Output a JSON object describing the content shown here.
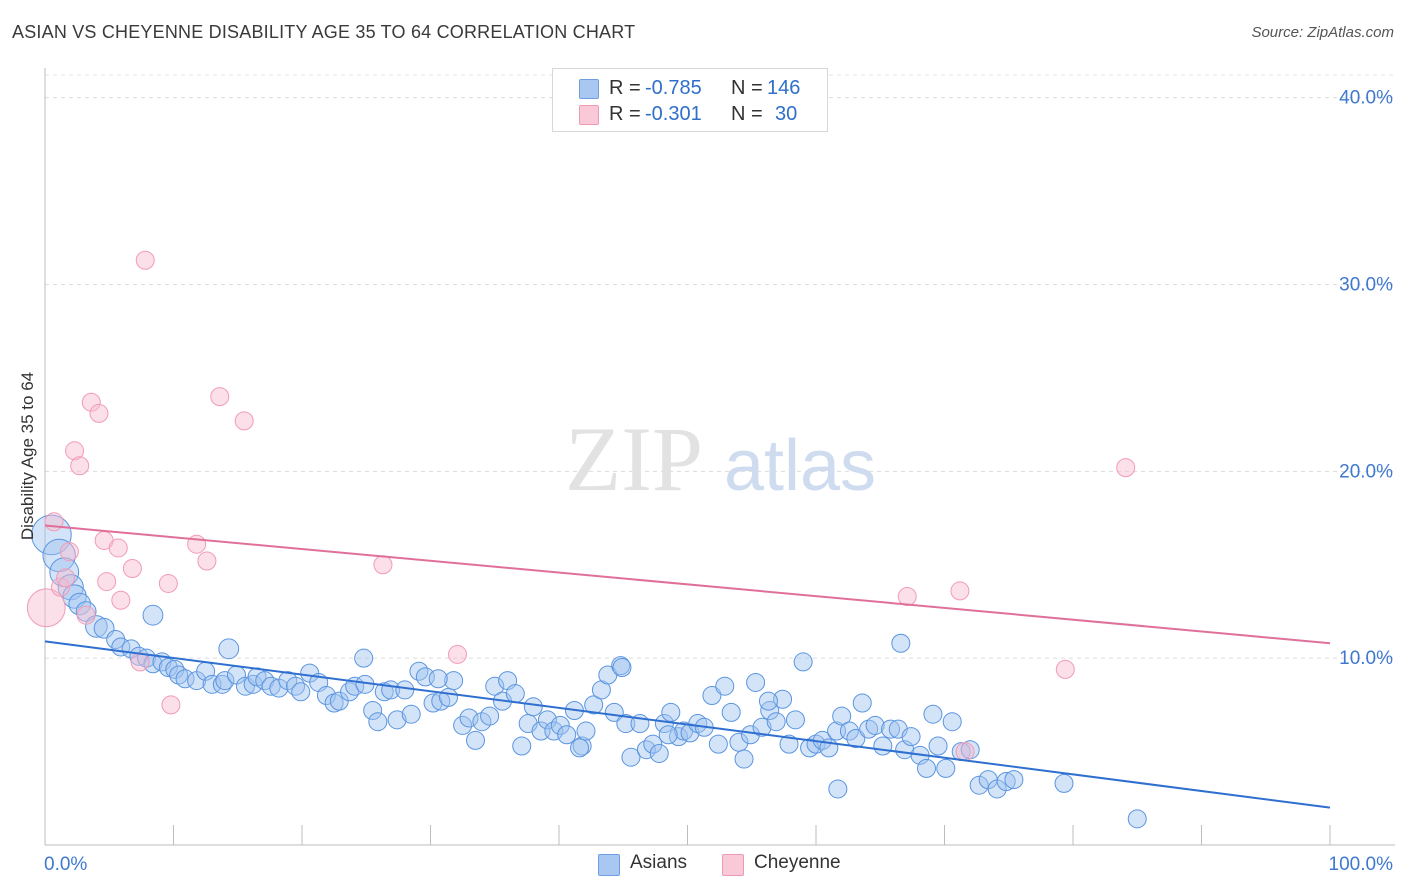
{
  "title": "ASIAN VS CHEYENNE DISABILITY AGE 35 TO 64 CORRELATION CHART",
  "source": "Source: ZipAtlas.com",
  "watermark": {
    "zip": "ZIP",
    "atlas": "atlas"
  },
  "legend_top": [
    {
      "r_label": "R =",
      "r_value": "-0.785",
      "n_label": "N =",
      "n_value": "146",
      "color": "#a9c8f1"
    },
    {
      "r_label": "R =",
      "r_value": "-0.301",
      "n_label": "N =",
      "n_value": "30",
      "color": "#f5b8cc"
    }
  ],
  "legend_bottom": [
    {
      "label": "Asians",
      "color": "#a9c8f1"
    },
    {
      "label": "Cheyenne",
      "color": "#f5b8cc"
    }
  ],
  "chart_data": {
    "type": "scatter",
    "title": "ASIAN VS CHEYENNE DISABILITY AGE 35 TO 64 CORRELATION CHART",
    "xlabel": "",
    "ylabel": "Disability Age 35 to 64",
    "xlim": [
      0,
      100
    ],
    "ylim": [
      0,
      41
    ],
    "x_tick_labels": [
      "0.0%",
      "100.0%"
    ],
    "y_ticks": [
      10,
      20,
      30,
      40
    ],
    "y_tick_labels": [
      "10.0%",
      "20.0%",
      "30.0%",
      "40.0%"
    ],
    "grid": true,
    "legend_position": "top-center",
    "series": [
      {
        "name": "Asians",
        "color": "#5b95e0",
        "trend": {
          "x": [
            0,
            100
          ],
          "y": [
            10.9,
            2.0
          ],
          "color": "#2f6fd0"
        },
        "points": [
          [
            0.5,
            16.6,
            2.2
          ],
          [
            1.1,
            15.5,
            1.8
          ],
          [
            1.5,
            14.6,
            1.6
          ],
          [
            2.0,
            13.8,
            1.4
          ],
          [
            2.3,
            13.3,
            1.3
          ],
          [
            2.7,
            12.9,
            1.2
          ],
          [
            3.2,
            12.5,
            1.1
          ],
          [
            4.0,
            11.7,
            1.2
          ],
          [
            4.6,
            11.6,
            1.1
          ],
          [
            5.5,
            11.0,
            1.0
          ],
          [
            5.9,
            10.6,
            1.0
          ],
          [
            6.7,
            10.5,
            1.0
          ],
          [
            7.3,
            10.1,
            1.0
          ],
          [
            7.9,
            10.0,
            1.0
          ],
          [
            8.4,
            9.7,
            1.0
          ],
          [
            9.1,
            9.8,
            1.0
          ],
          [
            9.6,
            9.5,
            1.0
          ],
          [
            10.1,
            9.4,
            1.0
          ],
          [
            10.4,
            9.1,
            1.0
          ],
          [
            10.9,
            8.9,
            1.0
          ],
          [
            11.8,
            8.8,
            1.0
          ],
          [
            12.5,
            9.3,
            1.0
          ],
          [
            13.0,
            8.6,
            1.0
          ],
          [
            13.8,
            8.6,
            1.0
          ],
          [
            14.0,
            8.8,
            1.0
          ],
          [
            14.9,
            9.1,
            1.0
          ],
          [
            15.6,
            8.5,
            1.0
          ],
          [
            16.2,
            8.6,
            1.0
          ],
          [
            16.5,
            9.0,
            1.0
          ],
          [
            17.1,
            8.8,
            1.0
          ],
          [
            17.6,
            8.5,
            1.0
          ],
          [
            18.2,
            8.4,
            1.0
          ],
          [
            18.9,
            8.8,
            1.0
          ],
          [
            19.5,
            8.5,
            1.0
          ],
          [
            19.9,
            8.2,
            1.0
          ],
          [
            20.6,
            9.2,
            1.0
          ],
          [
            21.3,
            8.7,
            1.0
          ],
          [
            21.9,
            8.0,
            1.0
          ],
          [
            22.5,
            7.6,
            1.0
          ],
          [
            22.9,
            7.7,
            1.0
          ],
          [
            23.7,
            8.2,
            1.0
          ],
          [
            24.1,
            8.5,
            1.0
          ],
          [
            24.9,
            8.6,
            1.0
          ],
          [
            25.5,
            7.2,
            1.0
          ],
          [
            25.9,
            6.6,
            1.0
          ],
          [
            26.4,
            8.2,
            1.0
          ],
          [
            26.9,
            8.3,
            1.0
          ],
          [
            27.4,
            6.7,
            1.0
          ],
          [
            28.0,
            8.3,
            1.0
          ],
          [
            28.5,
            7.0,
            1.0
          ],
          [
            29.1,
            9.3,
            1.0
          ],
          [
            29.6,
            9.0,
            1.0
          ],
          [
            30.2,
            7.6,
            1.0
          ],
          [
            30.8,
            7.7,
            1.0
          ],
          [
            31.4,
            7.9,
            1.0
          ],
          [
            31.8,
            8.8,
            1.0
          ],
          [
            32.5,
            6.4,
            1.0
          ],
          [
            33.0,
            6.8,
            1.0
          ],
          [
            33.5,
            5.6,
            1.0
          ],
          [
            34.0,
            6.6,
            1.0
          ],
          [
            34.6,
            6.9,
            1.0
          ],
          [
            35.0,
            8.5,
            1.0
          ],
          [
            35.6,
            7.7,
            1.0
          ],
          [
            36.0,
            8.8,
            1.0
          ],
          [
            36.6,
            8.1,
            1.0
          ],
          [
            37.1,
            5.3,
            1.0
          ],
          [
            37.6,
            6.5,
            1.0
          ],
          [
            38.0,
            7.4,
            1.0
          ],
          [
            38.6,
            6.1,
            1.0
          ],
          [
            39.1,
            6.7,
            1.0
          ],
          [
            39.6,
            6.1,
            1.0
          ],
          [
            40.1,
            6.4,
            1.0
          ],
          [
            40.6,
            5.9,
            1.0
          ],
          [
            41.2,
            7.2,
            1.0
          ],
          [
            41.8,
            5.3,
            1.0
          ],
          [
            42.1,
            6.1,
            1.0
          ],
          [
            42.7,
            7.5,
            1.0
          ],
          [
            43.3,
            8.3,
            1.0
          ],
          [
            43.8,
            9.1,
            1.0
          ],
          [
            44.3,
            7.1,
            1.0
          ],
          [
            44.8,
            9.6,
            1.0
          ],
          [
            45.2,
            6.5,
            1.0
          ],
          [
            45.6,
            4.7,
            1.0
          ],
          [
            46.3,
            6.5,
            1.0
          ],
          [
            46.8,
            5.1,
            1.0
          ],
          [
            47.3,
            5.4,
            1.0
          ],
          [
            47.8,
            4.9,
            1.0
          ],
          [
            48.2,
            6.5,
            1.0
          ],
          [
            48.7,
            7.1,
            1.0
          ],
          [
            49.3,
            5.8,
            1.0
          ],
          [
            49.7,
            6.1,
            1.0
          ],
          [
            50.2,
            6.0,
            1.0
          ],
          [
            50.8,
            6.5,
            1.0
          ],
          [
            51.3,
            6.3,
            1.0
          ],
          [
            51.9,
            8.0,
            1.0
          ],
          [
            52.4,
            5.4,
            1.0
          ],
          [
            52.9,
            8.5,
            1.0
          ],
          [
            53.4,
            7.1,
            1.0
          ],
          [
            54.0,
            5.5,
            1.0
          ],
          [
            54.4,
            4.6,
            1.0
          ],
          [
            54.9,
            5.9,
            1.0
          ],
          [
            55.3,
            8.7,
            1.0
          ],
          [
            55.8,
            6.3,
            1.0
          ],
          [
            56.4,
            7.2,
            1.0
          ],
          [
            56.9,
            6.6,
            1.0
          ],
          [
            57.4,
            7.8,
            1.0
          ],
          [
            57.9,
            5.4,
            1.0
          ],
          [
            58.4,
            6.7,
            1.0
          ],
          [
            59.0,
            9.8,
            1.0
          ],
          [
            59.5,
            5.2,
            1.0
          ],
          [
            60.0,
            5.4,
            1.0
          ],
          [
            60.5,
            5.6,
            1.0
          ],
          [
            61.0,
            5.2,
            1.0
          ],
          [
            61.6,
            6.1,
            1.0
          ],
          [
            62.0,
            6.9,
            1.0
          ],
          [
            62.6,
            6.1,
            1.0
          ],
          [
            63.1,
            5.7,
            1.0
          ],
          [
            63.6,
            7.6,
            1.0
          ],
          [
            64.1,
            6.2,
            1.0
          ],
          [
            64.6,
            6.4,
            1.0
          ],
          [
            65.2,
            5.3,
            1.0
          ],
          [
            65.8,
            6.2,
            1.0
          ],
          [
            66.4,
            6.2,
            1.0
          ],
          [
            66.9,
            5.1,
            1.0
          ],
          [
            67.4,
            5.8,
            1.0
          ],
          [
            68.1,
            4.8,
            1.0
          ],
          [
            68.6,
            4.1,
            1.0
          ],
          [
            69.1,
            7.0,
            1.0
          ],
          [
            69.5,
            5.3,
            1.0
          ],
          [
            70.1,
            4.1,
            1.0
          ],
          [
            70.6,
            6.6,
            1.0
          ],
          [
            71.3,
            5.0,
            1.0
          ],
          [
            72.0,
            5.1,
            1.0
          ],
          [
            72.7,
            3.2,
            1.0
          ],
          [
            73.4,
            3.5,
            1.0
          ],
          [
            74.1,
            3.0,
            1.0
          ],
          [
            74.8,
            3.4,
            1.0
          ],
          [
            75.4,
            3.5,
            1.0
          ],
          [
            66.6,
            10.8,
            1.0
          ],
          [
            61.7,
            3.0,
            1.0
          ],
          [
            85.0,
            1.4,
            1.0
          ],
          [
            24.8,
            10.0,
            1.0
          ],
          [
            8.4,
            12.3,
            1.1
          ],
          [
            14.3,
            10.5,
            1.1
          ],
          [
            30.6,
            8.9,
            1.0
          ],
          [
            44.9,
            9.5,
            1.0
          ],
          [
            48.5,
            5.9,
            1.0
          ],
          [
            41.6,
            5.2,
            1.0
          ],
          [
            56.3,
            7.7,
            1.0
          ],
          [
            79.3,
            3.3,
            1.0
          ]
        ]
      },
      {
        "name": "Cheyenne",
        "color": "#f29bb6",
        "trend": {
          "x": [
            0,
            100
          ],
          "y": [
            17.1,
            10.8
          ],
          "color": "#e0709a"
        },
        "points": [
          [
            0.1,
            12.7,
            2.1
          ],
          [
            0.7,
            17.3,
            1.0
          ],
          [
            1.2,
            13.8,
            1.0
          ],
          [
            1.6,
            14.3,
            1.0
          ],
          [
            1.9,
            15.7,
            1.0
          ],
          [
            2.3,
            21.1,
            1.0
          ],
          [
            2.7,
            20.3,
            1.0
          ],
          [
            3.2,
            12.3,
            1.0
          ],
          [
            3.6,
            23.7,
            1.0
          ],
          [
            4.2,
            23.1,
            1.0
          ],
          [
            4.6,
            16.3,
            1.0
          ],
          [
            4.8,
            14.1,
            1.0
          ],
          [
            5.7,
            15.9,
            1.0
          ],
          [
            5.9,
            13.1,
            1.0
          ],
          [
            6.8,
            14.8,
            1.0
          ],
          [
            7.4,
            9.8,
            1.0
          ],
          [
            7.8,
            31.3,
            1.0
          ],
          [
            9.6,
            14.0,
            1.0
          ],
          [
            9.8,
            7.5,
            1.0
          ],
          [
            11.8,
            16.1,
            1.0
          ],
          [
            12.6,
            15.2,
            1.0
          ],
          [
            13.6,
            24.0,
            1.0
          ],
          [
            15.5,
            22.7,
            1.0
          ],
          [
            26.3,
            15.0,
            1.0
          ],
          [
            32.1,
            10.2,
            1.0
          ],
          [
            67.1,
            13.3,
            1.0
          ],
          [
            71.2,
            13.6,
            1.0
          ],
          [
            71.6,
            5.0,
            1.0
          ],
          [
            79.4,
            9.4,
            1.0
          ],
          [
            84.1,
            20.2,
            1.0
          ]
        ]
      }
    ]
  }
}
